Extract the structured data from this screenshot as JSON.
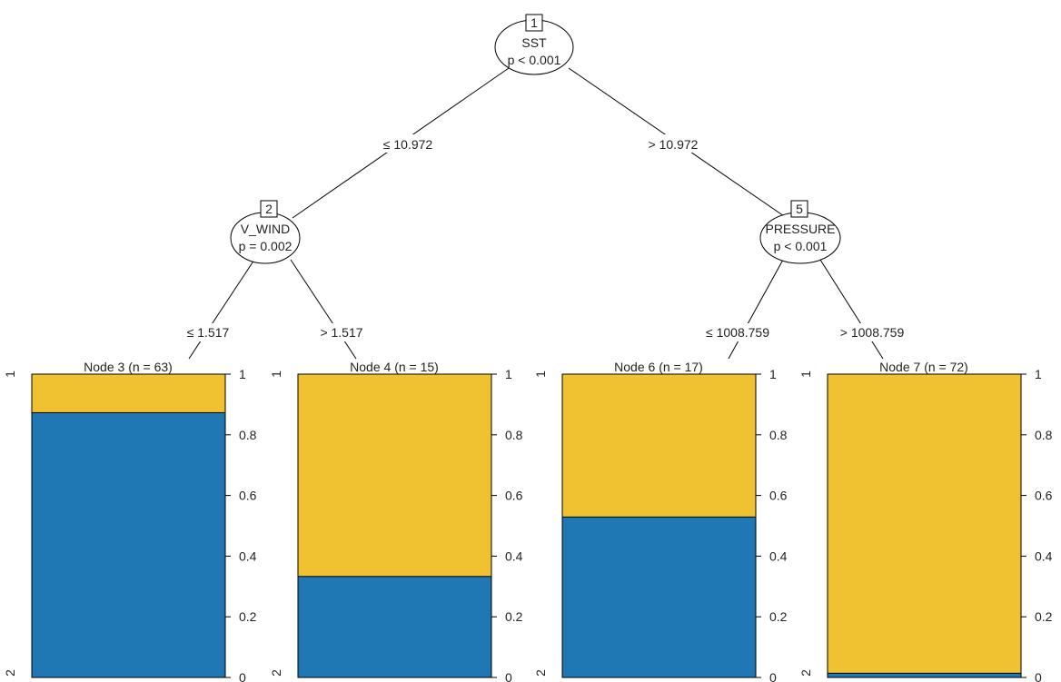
{
  "colors": {
    "class_1": "#f0c232",
    "class_2": "#1f77b4",
    "line": "#000000"
  },
  "inner_nodes": [
    {
      "id": "1",
      "variable": "SST",
      "p": "p < 0.001"
    },
    {
      "id": "2",
      "variable": "V_WIND",
      "p": "p = 0.002"
    },
    {
      "id": "5",
      "variable": "PRESSURE",
      "p": "p < 0.001"
    }
  ],
  "edges": [
    {
      "label": "≤ 10.972"
    },
    {
      "label": "> 10.972"
    },
    {
      "label": "≤ 1.517"
    },
    {
      "label": "> 1.517"
    },
    {
      "label": "≤ 1008.759"
    },
    {
      "label": "> 1008.759"
    }
  ],
  "terminal_nodes": [
    {
      "title": "Node 3 (n = 63)",
      "fraction_class_2": 0.873
    },
    {
      "title": "Node 4 (n = 15)",
      "fraction_class_2": 0.333
    },
    {
      "title": "Node 6 (n = 17)",
      "fraction_class_2": 0.529
    },
    {
      "title": "Node 7 (n = 72)",
      "fraction_class_2": 0.014
    }
  ],
  "axis": {
    "ticks": [
      "1",
      "0.8",
      "0.6",
      "0.4",
      "0.2",
      "0"
    ],
    "class_labels": {
      "top": "1",
      "bottom": "2"
    }
  }
}
